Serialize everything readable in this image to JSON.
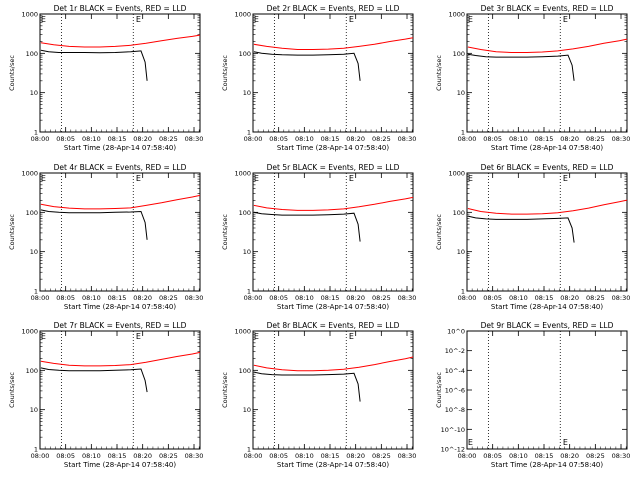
{
  "colors": {
    "events": "#000000",
    "lld": "#ff0000",
    "marker": "#000000",
    "background": "#ffffff",
    "frame": "#000000"
  },
  "common": {
    "ylabel": "Counts/sec",
    "xlabel": "Start Time (28-Apr-14 07:58:40)",
    "x_ticks": [
      "08:00",
      "08:05",
      "08:10",
      "08:15",
      "08:20",
      "08:25",
      "08:30"
    ],
    "x_tick_minutes": [
      1.333,
      6.333,
      11.333,
      16.333,
      21.333,
      26.333,
      31.333
    ],
    "xlim_minutes": [
      1.333,
      32.5
    ],
    "dotted_lines_minutes": [
      5.5,
      19.5
    ],
    "scale": "log",
    "marker_label": "E"
  },
  "chart_data": [
    {
      "type": "line",
      "title": "Det 1r BLACK = Events, RED = LLD",
      "ylim": [
        1,
        1000
      ],
      "y_ticks": [
        "1",
        "10",
        "100",
        "1000"
      ],
      "y_tick_values": [
        1,
        10,
        100,
        1000
      ],
      "marker_positions": [
        {
          "x": 1.5,
          "y": 1000
        },
        {
          "x": 20.0,
          "y": 1000
        }
      ],
      "series": [
        {
          "name": "Events",
          "x": [
            1.5,
            3,
            5,
            7,
            10,
            13,
            16,
            19,
            21.0,
            21.8,
            22.2
          ],
          "values": [
            120,
            110,
            105,
            105,
            105,
            104,
            105,
            110,
            115,
            60,
            20
          ]
        },
        {
          "name": "LLD",
          "x": [
            1.5,
            4,
            7,
            10,
            13,
            16,
            19,
            22,
            25,
            28,
            31,
            32.5
          ],
          "values": [
            185,
            165,
            150,
            145,
            145,
            150,
            160,
            180,
            210,
            240,
            270,
            290
          ]
        }
      ]
    },
    {
      "type": "line",
      "title": "Det 2r BLACK = Events, RED = LLD",
      "ylim": [
        1,
        1000
      ],
      "y_ticks": [
        "1",
        "10",
        "100",
        "1000"
      ],
      "y_tick_values": [
        1,
        10,
        100,
        1000
      ],
      "marker_positions": [
        {
          "x": 1.5,
          "y": 1000
        },
        {
          "x": 20.0,
          "y": 1000
        }
      ],
      "series": [
        {
          "name": "Events",
          "x": [
            1.5,
            3,
            5,
            7,
            10,
            13,
            16,
            19,
            21.0,
            21.8,
            22.2
          ],
          "values": [
            110,
            100,
            95,
            92,
            90,
            90,
            92,
            95,
            100,
            55,
            20
          ]
        },
        {
          "name": "LLD",
          "x": [
            1.5,
            4,
            7,
            10,
            13,
            16,
            19,
            22,
            25,
            28,
            31,
            32.5
          ],
          "values": [
            170,
            150,
            135,
            125,
            125,
            128,
            135,
            150,
            170,
            200,
            230,
            250
          ]
        }
      ]
    },
    {
      "type": "line",
      "title": "Det 3r BLACK = Events, RED = LLD",
      "ylim": [
        1,
        1000
      ],
      "y_ticks": [
        "1",
        "10",
        "100",
        "1000"
      ],
      "y_tick_values": [
        1,
        10,
        100,
        1000
      ],
      "marker_positions": [
        {
          "x": 1.5,
          "y": 1000
        },
        {
          "x": 20.0,
          "y": 1000
        }
      ],
      "series": [
        {
          "name": "Events",
          "x": [
            1.5,
            3,
            5,
            7,
            10,
            13,
            16,
            19,
            21.0,
            21.8,
            22.2
          ],
          "values": [
            95,
            88,
            82,
            80,
            80,
            80,
            82,
            85,
            90,
            50,
            20
          ]
        },
        {
          "name": "LLD",
          "x": [
            1.5,
            4,
            7,
            10,
            13,
            16,
            19,
            22,
            25,
            28,
            31,
            32.5
          ],
          "values": [
            145,
            125,
            110,
            105,
            105,
            108,
            115,
            130,
            150,
            180,
            210,
            230
          ]
        }
      ]
    },
    {
      "type": "line",
      "title": "Det 4r BLACK = Events, RED = LLD",
      "ylim": [
        1,
        1000
      ],
      "y_ticks": [
        "1",
        "10",
        "100",
        "1000"
      ],
      "y_tick_values": [
        1,
        10,
        100,
        1000
      ],
      "marker_positions": [
        {
          "x": 1.5,
          "y": 1000
        },
        {
          "x": 20.0,
          "y": 1000
        }
      ],
      "series": [
        {
          "name": "Events",
          "x": [
            1.5,
            3,
            5,
            7,
            10,
            13,
            16,
            19,
            21.0,
            21.8,
            22.2
          ],
          "values": [
            115,
            105,
            100,
            98,
            98,
            98,
            100,
            102,
            105,
            55,
            20
          ]
        },
        {
          "name": "LLD",
          "x": [
            1.5,
            4,
            7,
            10,
            13,
            16,
            19,
            22,
            25,
            28,
            31,
            32.5
          ],
          "values": [
            160,
            140,
            128,
            122,
            122,
            125,
            130,
            150,
            175,
            210,
            245,
            270
          ]
        }
      ]
    },
    {
      "type": "line",
      "title": "Det 5r BLACK = Events, RED = LLD",
      "ylim": [
        1,
        1000
      ],
      "y_ticks": [
        "1",
        "10",
        "100",
        "1000"
      ],
      "y_tick_values": [
        1,
        10,
        100,
        1000
      ],
      "marker_positions": [
        {
          "x": 1.5,
          "y": 1000
        },
        {
          "x": 20.0,
          "y": 1000
        }
      ],
      "series": [
        {
          "name": "Events",
          "x": [
            1.5,
            3,
            5,
            7,
            10,
            13,
            16,
            19,
            21.0,
            21.8,
            22.2
          ],
          "values": [
            100,
            92,
            88,
            85,
            85,
            85,
            87,
            90,
            95,
            50,
            18
          ]
        },
        {
          "name": "LLD",
          "x": [
            1.5,
            4,
            7,
            10,
            13,
            16,
            19,
            22,
            25,
            28,
            31,
            32.5
          ],
          "values": [
            150,
            130,
            118,
            112,
            112,
            115,
            122,
            138,
            160,
            190,
            220,
            240
          ]
        }
      ]
    },
    {
      "type": "line",
      "title": "Det 6r BLACK = Events, RED = LLD",
      "ylim": [
        1,
        1000
      ],
      "y_ticks": [
        "1",
        "10",
        "100",
        "1000"
      ],
      "y_tick_values": [
        1,
        10,
        100,
        1000
      ],
      "marker_positions": [
        {
          "x": 1.5,
          "y": 1000
        },
        {
          "x": 20.0,
          "y": 1000
        }
      ],
      "series": [
        {
          "name": "Events",
          "x": [
            1.5,
            3,
            5,
            7,
            10,
            13,
            16,
            19,
            21.0,
            21.8,
            22.2
          ],
          "values": [
            80,
            72,
            68,
            66,
            66,
            66,
            68,
            70,
            72,
            40,
            17
          ]
        },
        {
          "name": "LLD",
          "x": [
            1.5,
            4,
            7,
            10,
            13,
            16,
            19,
            22,
            25,
            28,
            31,
            32.5
          ],
          "values": [
            125,
            105,
            95,
            90,
            90,
            92,
            98,
            110,
            128,
            155,
            185,
            205
          ]
        }
      ]
    },
    {
      "type": "line",
      "title": "Det 7r BLACK = Events, RED = LLD",
      "ylim": [
        1,
        1000
      ],
      "y_ticks": [
        "1",
        "10",
        "100",
        "1000"
      ],
      "y_tick_values": [
        1,
        10,
        100,
        1000
      ],
      "marker_positions": [
        {
          "x": 1.5,
          "y": 1000
        },
        {
          "x": 20.0,
          "y": 1000
        }
      ],
      "series": [
        {
          "name": "Events",
          "x": [
            1.5,
            3,
            5,
            7,
            10,
            13,
            16,
            19,
            21.0,
            21.8,
            22.2
          ],
          "values": [
            115,
            105,
            100,
            98,
            98,
            98,
            100,
            103,
            108,
            55,
            28
          ]
        },
        {
          "name": "LLD",
          "x": [
            1.5,
            4,
            7,
            10,
            13,
            16,
            19,
            22,
            25,
            28,
            31,
            32.5
          ],
          "values": [
            170,
            150,
            135,
            130,
            130,
            133,
            140,
            160,
            190,
            225,
            260,
            285
          ]
        }
      ]
    },
    {
      "type": "line",
      "title": "Det 8r BLACK = Events, RED = LLD",
      "ylim": [
        1,
        1000
      ],
      "y_ticks": [
        "1",
        "10",
        "100",
        "1000"
      ],
      "y_tick_values": [
        1,
        10,
        100,
        1000
      ],
      "marker_positions": [
        {
          "x": 1.5,
          "y": 1000
        },
        {
          "x": 20.0,
          "y": 1000
        }
      ],
      "series": [
        {
          "name": "Events",
          "x": [
            1.5,
            3,
            5,
            7,
            10,
            13,
            16,
            19,
            21.0,
            21.8,
            22.2
          ],
          "values": [
            90,
            82,
            78,
            76,
            76,
            76,
            78,
            80,
            84,
            45,
            16
          ]
        },
        {
          "name": "LLD",
          "x": [
            1.5,
            4,
            7,
            10,
            13,
            16,
            19,
            22,
            25,
            28,
            31,
            32.5
          ],
          "values": [
            135,
            115,
            103,
            98,
            98,
            100,
            106,
            120,
            140,
            168,
            198,
            218
          ]
        }
      ]
    },
    {
      "type": "line",
      "title": "Det 9r BLACK = Events, RED = LLD",
      "ylim": [
        1,
        1e-12
      ],
      "y_ticks": [
        "10^0",
        "10^-2",
        "10^-4",
        "10^-6",
        "10^-8",
        "10^-10",
        "10^-12"
      ],
      "y_tick_values": [
        1,
        0.01,
        0.0001,
        1e-06,
        1e-08,
        1e-10,
        1e-12
      ],
      "marker_positions": [
        {
          "x": 1.5,
          "y": 1e-11
        },
        {
          "x": 20.0,
          "y": 1e-11
        }
      ],
      "series": []
    }
  ]
}
